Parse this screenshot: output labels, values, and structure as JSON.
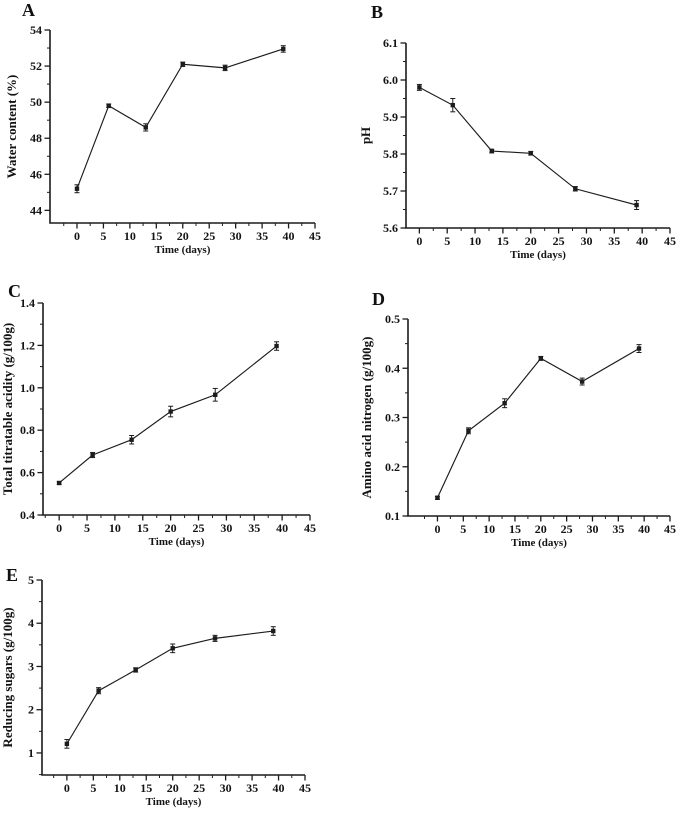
{
  "figure": {
    "background": "#ffffff",
    "ink_color": "#1c1c1c",
    "panel_letters": [
      "A",
      "B",
      "C",
      "D",
      "E"
    ]
  },
  "chart_data": [
    {
      "type": "line",
      "panel_label": "A",
      "title": "",
      "xlabel": "Time (days)",
      "ylabel": "Water content (%)",
      "x": [
        0,
        6,
        13,
        20,
        28,
        39
      ],
      "values": [
        45.2,
        49.8,
        48.6,
        52.1,
        51.9,
        52.95
      ],
      "errors": [
        0.22,
        0.1,
        0.2,
        0.12,
        0.15,
        0.18
      ],
      "xlim": [
        -5.1,
        45
      ],
      "ylim": [
        43.3,
        54
      ],
      "xticks": [
        0,
        5,
        10,
        15,
        20,
        25,
        30,
        35,
        40,
        45
      ],
      "xtick_labels": [
        "0",
        "5",
        "10",
        "15",
        "20",
        "25",
        "30",
        "35",
        "40",
        "45"
      ],
      "yticks": [
        44,
        46,
        48,
        50,
        52,
        54
      ],
      "ytick_labels": [
        "44",
        "46",
        "48",
        "50",
        "52",
        "54"
      ],
      "marker": "square",
      "grid": false,
      "legend": "none",
      "line_color": "#1c1c1c"
    },
    {
      "type": "line",
      "panel_label": "B",
      "title": "",
      "xlabel": "Time (days)",
      "ylabel": "pH",
      "x": [
        0,
        6,
        13,
        20,
        28,
        39
      ],
      "values": [
        5.98,
        5.932,
        5.808,
        5.802,
        5.706,
        5.662
      ],
      "errors": [
        0.008,
        0.018,
        0.005,
        0.005,
        0.006,
        0.012
      ],
      "xlim": [
        -2.4,
        45
      ],
      "ylim": [
        5.6,
        6.1
      ],
      "xticks": [
        0,
        5,
        10,
        15,
        20,
        25,
        30,
        35,
        40,
        45
      ],
      "xtick_labels": [
        "0",
        "5",
        "10",
        "15",
        "20",
        "25",
        "30",
        "35",
        "40",
        "45"
      ],
      "yticks": [
        5.6,
        5.7,
        5.8,
        5.9,
        6.0,
        6.1
      ],
      "ytick_labels": [
        "5.6",
        "5.7",
        "5.8",
        "5.9",
        "6.0",
        "6.1"
      ],
      "marker": "square",
      "grid": false,
      "legend": "none",
      "line_color": "#1c1c1c"
    },
    {
      "type": "line",
      "panel_label": "C",
      "title": "",
      "xlabel": "Time (days)",
      "ylabel": "Total titratable acidity (g/100g)",
      "x": [
        0,
        6,
        13,
        20,
        28,
        39
      ],
      "values": [
        0.551,
        0.683,
        0.755,
        0.888,
        0.967,
        1.197
      ],
      "errors": [
        0.006,
        0.012,
        0.02,
        0.025,
        0.03,
        0.02
      ],
      "xlim": [
        -2.9,
        45
      ],
      "ylim": [
        0.4,
        1.4
      ],
      "xticks": [
        0,
        5,
        10,
        15,
        20,
        25,
        30,
        35,
        40,
        45
      ],
      "xtick_labels": [
        "0",
        "5",
        "10",
        "15",
        "20",
        "25",
        "30",
        "35",
        "40",
        "45"
      ],
      "yticks": [
        0.4,
        0.6,
        0.8,
        1.0,
        1.2,
        1.4
      ],
      "ytick_labels": [
        "0.4",
        "0.6",
        "0.8",
        "1.0",
        "1.2",
        "1.4"
      ],
      "marker": "square",
      "grid": false,
      "legend": "none",
      "line_color": "#1c1c1c"
    },
    {
      "type": "line",
      "panel_label": "D",
      "title": "",
      "xlabel": "Time (days)",
      "ylabel": "Amino acid nitrogen (g/100g)",
      "x": [
        0,
        6,
        13,
        20,
        28,
        39
      ],
      "values": [
        0.137,
        0.273,
        0.329,
        0.42,
        0.373,
        0.44
      ],
      "errors": [
        0.003,
        0.006,
        0.009,
        0.004,
        0.007,
        0.008
      ],
      "xlim": [
        -5.7,
        45
      ],
      "ylim": [
        0.1,
        0.5
      ],
      "xticks": [
        0,
        5,
        10,
        15,
        20,
        25,
        30,
        35,
        40,
        45
      ],
      "xtick_labels": [
        "0",
        "5",
        "10",
        "15",
        "20",
        "25",
        "30",
        "35",
        "40",
        "45"
      ],
      "yticks": [
        0.1,
        0.2,
        0.3,
        0.4,
        0.5
      ],
      "ytick_labels": [
        "0.1",
        "0.2",
        "0.3",
        "0.4",
        "0.5"
      ],
      "marker": "square",
      "grid": false,
      "legend": "none",
      "line_color": "#1c1c1c"
    },
    {
      "type": "line",
      "panel_label": "E",
      "title": "",
      "xlabel": "Time (days)",
      "ylabel": "Reducing sugars (g/100g)",
      "x": [
        0,
        6,
        13,
        20,
        28,
        39
      ],
      "values": [
        1.21,
        2.44,
        2.92,
        3.42,
        3.65,
        3.82
      ],
      "errors": [
        0.1,
        0.07,
        0.05,
        0.1,
        0.07,
        0.1
      ],
      "xlim": [
        -4.7,
        45
      ],
      "ylim": [
        0.49,
        5
      ],
      "xticks": [
        0,
        5,
        10,
        15,
        20,
        25,
        30,
        35,
        40,
        45
      ],
      "xtick_labels": [
        "0",
        "5",
        "10",
        "15",
        "20",
        "25",
        "30",
        "35",
        "40",
        "45"
      ],
      "yticks": [
        1,
        2,
        3,
        4,
        5
      ],
      "ytick_labels": [
        "1",
        "2",
        "3",
        "4",
        "5"
      ],
      "marker": "square",
      "grid": false,
      "legend": "none",
      "line_color": "#1c1c1c"
    }
  ]
}
